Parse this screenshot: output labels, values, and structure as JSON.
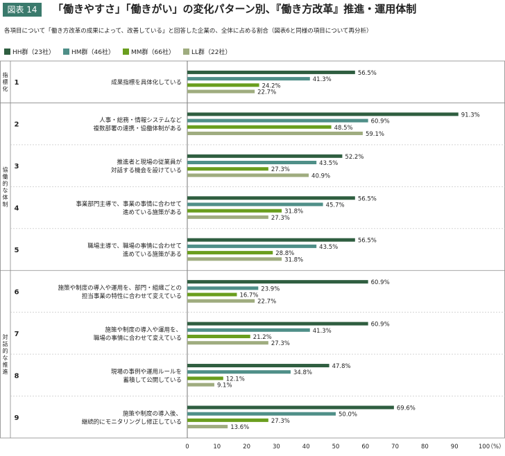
{
  "figure": {
    "badge": "図表 14",
    "title": "「働きやすさ」「働きがい」の変化パターン別、『働き方改革』推進・運用体制",
    "subtitle": "各項目について「働き方改革の成果によって、改善している」と回答した企業の、全体に占める割合（図表6と同様の項目について再分析）"
  },
  "chart_data": {
    "type": "bar",
    "orientation": "horizontal",
    "series": [
      {
        "name": "HH群（23社）",
        "color": "#2f5e40",
        "values": [
          56.5,
          91.3,
          52.2,
          56.5,
          56.5,
          60.9,
          60.9,
          47.8,
          69.6
        ]
      },
      {
        "name": "HM群（46社）",
        "color": "#4f8f88",
        "values": [
          41.3,
          60.9,
          43.5,
          45.7,
          43.5,
          23.9,
          41.3,
          34.8,
          50.0
        ]
      },
      {
        "name": "MM群（66社）",
        "color": "#6a9e1e",
        "values": [
          24.2,
          48.5,
          27.3,
          31.8,
          28.8,
          16.7,
          21.2,
          12.1,
          27.3
        ]
      },
      {
        "name": "LL群（22社）",
        "color": "#9fac7f",
        "values": [
          22.7,
          59.1,
          40.9,
          27.3,
          31.8,
          22.7,
          27.3,
          9.1,
          13.6
        ]
      }
    ],
    "items": [
      {
        "num": "1",
        "lines": [
          "成果指標を具体化している"
        ]
      },
      {
        "num": "2",
        "lines": [
          "人事・総務・情報システムなど",
          "複数部署の連携・協働体制がある"
        ]
      },
      {
        "num": "3",
        "lines": [
          "推進者と現場の従業員が",
          "対話する機会を設けている"
        ]
      },
      {
        "num": "4",
        "lines": [
          "事業部門主導で、事業の事情に合わせて",
          "進めている施策がある"
        ]
      },
      {
        "num": "5",
        "lines": [
          "職場主導で、職場の事情に合わせて",
          "進めている施策がある"
        ]
      },
      {
        "num": "6",
        "lines": [
          "施策や制度の導入や運用を、部門・組織ごとの",
          "担当事業の特性に合わせて変えている"
        ]
      },
      {
        "num": "7",
        "lines": [
          "施策や制度の導入や運用を、",
          "職場の事情に合わせて変えている"
        ]
      },
      {
        "num": "8",
        "lines": [
          "現場の事例や運用ルールを",
          "蓄積して公開している"
        ]
      },
      {
        "num": "9",
        "lines": [
          "施策や制度の導入後、",
          "継続的にモニタリングし修正している"
        ]
      }
    ],
    "groups": [
      {
        "label": "指標化",
        "items": [
          0
        ]
      },
      {
        "label": "協働的な体制",
        "items": [
          1,
          2,
          3,
          4
        ]
      },
      {
        "label": "対話的な推進",
        "items": [
          5,
          6,
          7,
          8
        ]
      }
    ],
    "xlim": [
      0,
      100
    ],
    "xticks": [
      "0",
      "10",
      "20",
      "30",
      "40",
      "50",
      "60",
      "70",
      "80",
      "90",
      "100"
    ],
    "xunit": "（%）",
    "value_suffix": "%"
  }
}
